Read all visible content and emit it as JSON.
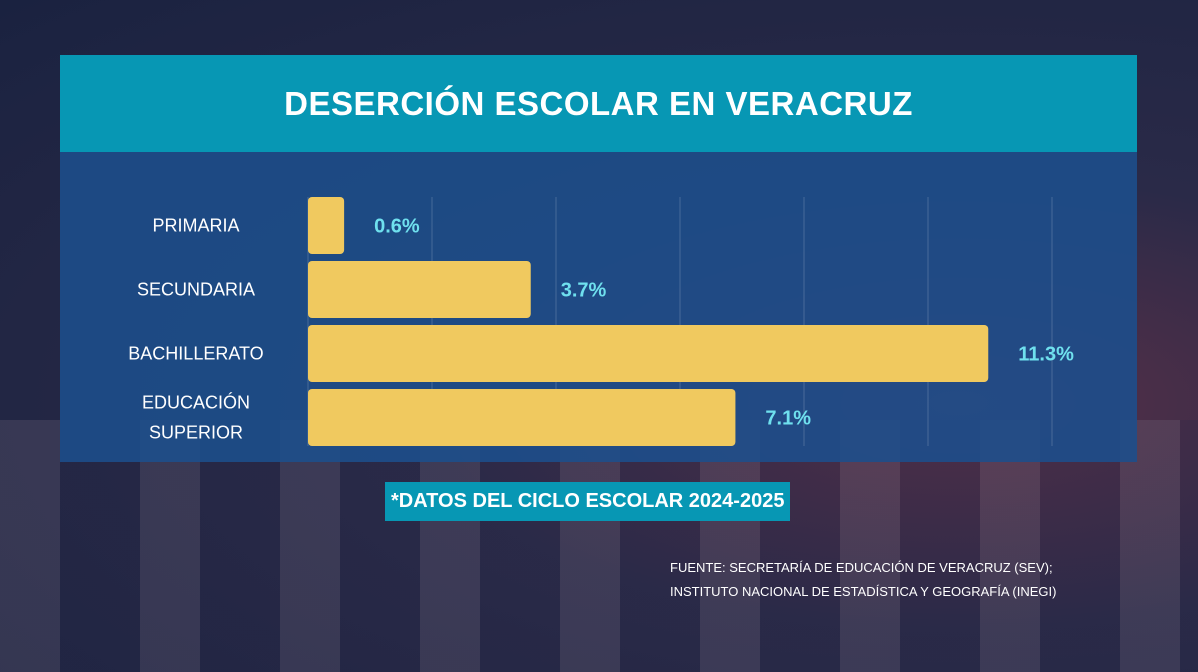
{
  "chart_data": {
    "type": "bar",
    "orientation": "horizontal",
    "title": "DESERCIÓN ESCOLAR EN VERACRUZ",
    "categories": [
      "PRIMARIA",
      "SECUNDARIA",
      "BACHILLERATO",
      "EDUCACIÓN SUPERIOR"
    ],
    "values": [
      0.6,
      3.7,
      11.3,
      7.1
    ],
    "value_labels": [
      "0.6%",
      "3.7%",
      "11.3%",
      "7.1%"
    ],
    "xlim": [
      0,
      12
    ],
    "grid": true,
    "colors": {
      "bar": "#f0c95f",
      "label": "#6fe0ee"
    }
  },
  "note": "*DATOS DEL CICLO ESCOLAR 2024-2025",
  "source": [
    "FUENTE: SECRETARÍA DE EDUCACIÓN DE VERACRUZ (SEV);",
    "INSTITUTO NACIONAL DE ESTADÍSTICA Y GEOGRAFÍA (INEGI)"
  ]
}
